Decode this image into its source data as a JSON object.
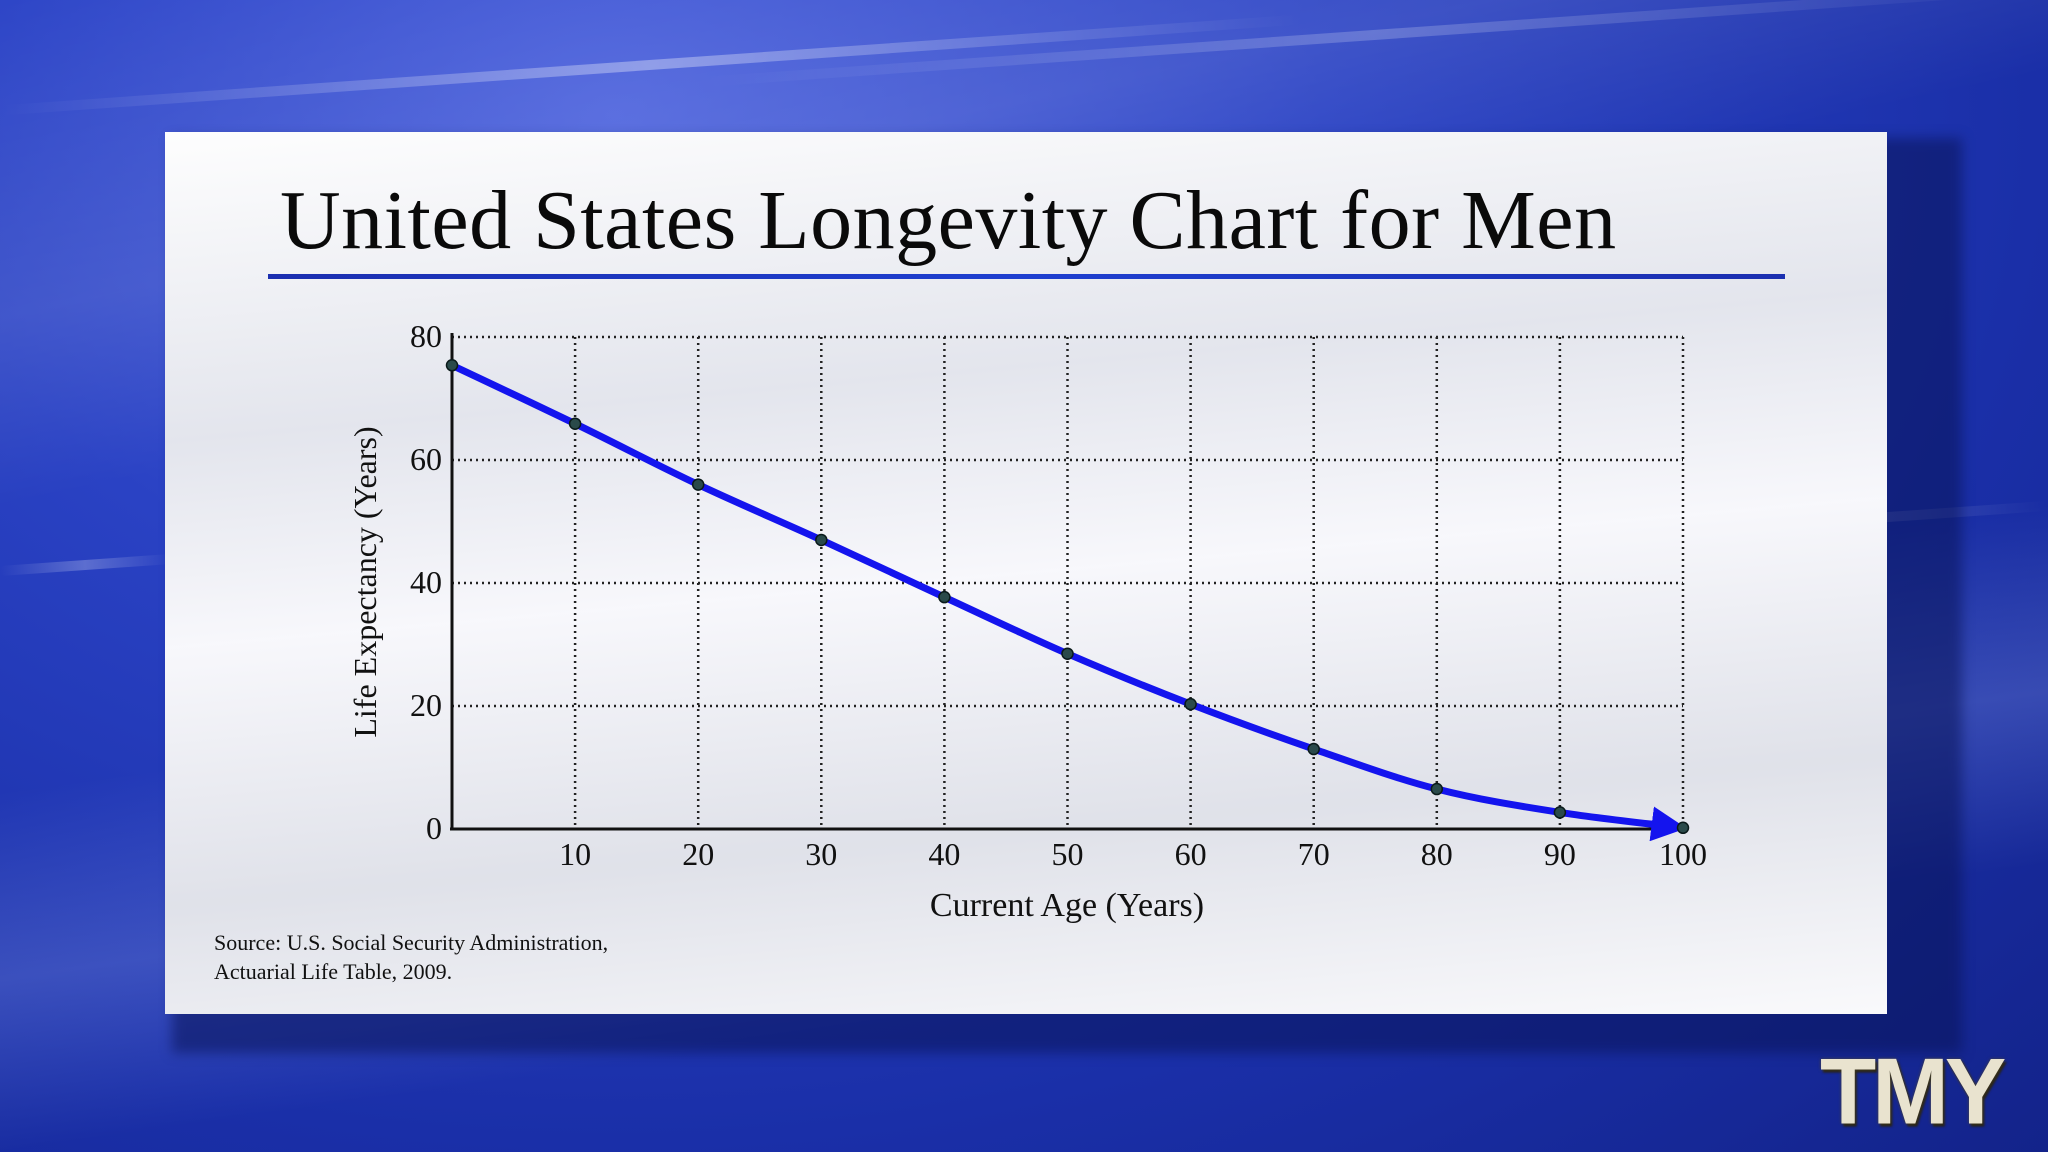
{
  "slide": {
    "title": "United States Longevity Chart for Men",
    "source_line1": "Source: U.S. Social Security Administration,",
    "source_line2": "Actuarial Life Table, 2009.",
    "logo_text": "TMY"
  },
  "colors": {
    "background": "#1c34b4",
    "title_rule": "#1b2fb0",
    "line": "#1414ee",
    "marker": "#2a4a4a"
  },
  "chart_data": {
    "type": "line",
    "title": "United States Longevity Chart for Men",
    "xlabel": "Current Age (Years)",
    "ylabel": "Life Expectancy (Years)",
    "xlim": [
      0,
      100
    ],
    "ylim": [
      0,
      80
    ],
    "xticks": [
      10,
      20,
      30,
      40,
      50,
      60,
      70,
      80,
      90,
      100
    ],
    "yticks": [
      0,
      20,
      40,
      60,
      80
    ],
    "grid": true,
    "grid_style": "dotted",
    "series": [
      {
        "x": [
          0,
          10,
          20,
          30,
          40,
          50,
          60,
          70,
          80,
          90,
          100
        ],
        "y": [
          75.4,
          65.9,
          56.0,
          47.0,
          37.7,
          28.5,
          20.3,
          13.0,
          6.5,
          2.7,
          0.2
        ],
        "end_arrow": true
      }
    ]
  }
}
